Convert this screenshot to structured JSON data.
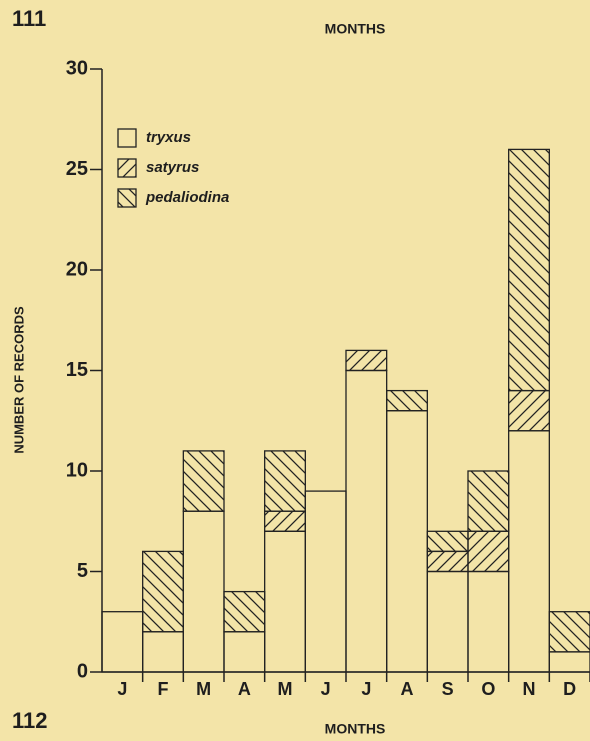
{
  "page_number_top": "111",
  "top_axis_label": "MONTHS",
  "page_number_bottom": "112",
  "chart_data": {
    "type": "stacked_bar",
    "categories": [
      "J",
      "F",
      "M",
      "A",
      "M",
      "J",
      "J",
      "A",
      "S",
      "O",
      "N",
      "D"
    ],
    "series": [
      {
        "name": "tryxus",
        "color": "#222222",
        "pattern": "none",
        "values": [
          3,
          2,
          8,
          2,
          7,
          9,
          15,
          13,
          5,
          5,
          12,
          1
        ]
      },
      {
        "name": "satyrus",
        "color": "#222222",
        "pattern": "forward",
        "values": [
          0,
          0,
          0,
          0,
          1,
          0,
          1,
          0,
          1,
          2,
          2,
          0
        ]
      },
      {
        "name": "pedaliodina",
        "color": "#222222",
        "pattern": "back",
        "values": [
          0,
          4,
          3,
          2,
          3,
          0,
          0,
          1,
          1,
          3,
          12,
          2
        ]
      }
    ],
    "xlabel": "MONTHS",
    "ylabel": "NUMBER OF RECORDS",
    "ylim": [
      0,
      30
    ],
    "yticks": [
      0,
      5,
      10,
      15,
      20,
      25,
      30
    ],
    "legend": "upper left"
  }
}
